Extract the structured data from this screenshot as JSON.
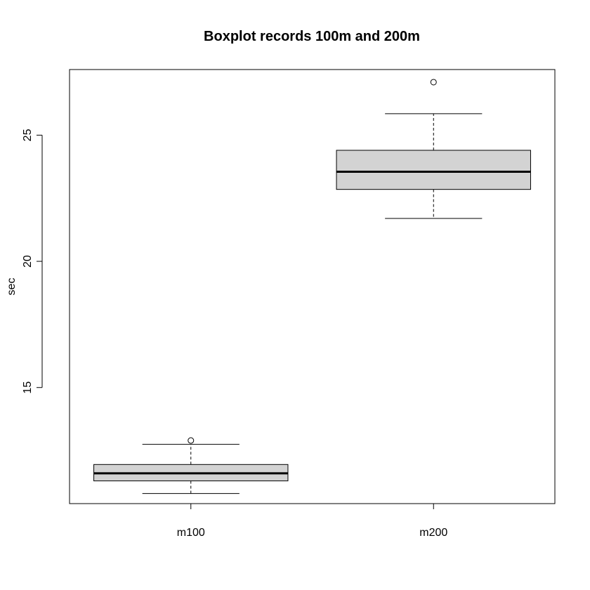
{
  "chart_data": {
    "type": "boxplot",
    "title": "Boxplot records 100m and 200m",
    "xlabel": "",
    "ylabel": "sec",
    "ylim": [
      10.4,
      27.6
    ],
    "yticks": [
      15,
      20,
      25
    ],
    "grid": false,
    "categories": [
      "m100",
      "m200"
    ],
    "boxes": [
      {
        "category": "m100",
        "whisker_low": 10.8,
        "q1": 11.3,
        "median": 11.6,
        "q3": 11.95,
        "whisker_high": 12.75,
        "outliers": [
          12.9
        ]
      },
      {
        "category": "m200",
        "whisker_low": 21.7,
        "q1": 22.85,
        "median": 23.55,
        "q3": 24.4,
        "whisker_high": 25.85,
        "outliers": [
          27.1
        ]
      }
    ],
    "colors": {
      "box_fill": "#d3d3d3",
      "stroke": "#000000"
    }
  }
}
